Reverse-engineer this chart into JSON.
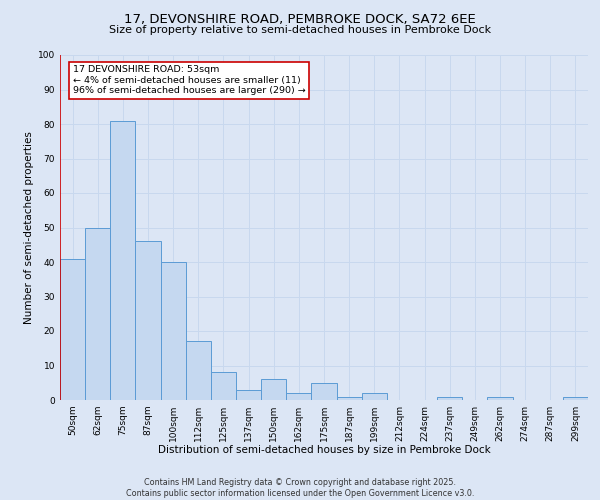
{
  "title_line1": "17, DEVONSHIRE ROAD, PEMBROKE DOCK, SA72 6EE",
  "title_line2": "Size of property relative to semi-detached houses in Pembroke Dock",
  "xlabel": "Distribution of semi-detached houses by size in Pembroke Dock",
  "ylabel": "Number of semi-detached properties",
  "categories": [
    "50sqm",
    "62sqm",
    "75sqm",
    "87sqm",
    "100sqm",
    "112sqm",
    "125sqm",
    "137sqm",
    "150sqm",
    "162sqm",
    "175sqm",
    "187sqm",
    "199sqm",
    "212sqm",
    "224sqm",
    "237sqm",
    "249sqm",
    "262sqm",
    "274sqm",
    "287sqm",
    "299sqm"
  ],
  "values": [
    41,
    50,
    81,
    46,
    40,
    17,
    8,
    3,
    6,
    2,
    5,
    1,
    2,
    0,
    0,
    1,
    0,
    1,
    0,
    0,
    1
  ],
  "bar_color": "#c5d8f0",
  "bar_edge_color": "#5b9bd5",
  "bar_edge_width": 0.7,
  "annotation_text": "17 DEVONSHIRE ROAD: 53sqm\n← 4% of semi-detached houses are smaller (11)\n96% of semi-detached houses are larger (290) →",
  "annotation_box_color": "#ffffff",
  "annotation_box_edge_color": "#cc0000",
  "subject_line_color": "#cc0000",
  "ylim": [
    0,
    100
  ],
  "yticks": [
    0,
    10,
    20,
    30,
    40,
    50,
    60,
    70,
    80,
    90,
    100
  ],
  "grid_color": "#c8d8ee",
  "background_color": "#dce6f5",
  "footer": "Contains HM Land Registry data © Crown copyright and database right 2025.\nContains public sector information licensed under the Open Government Licence v3.0.",
  "title_fontsize": 9.5,
  "subtitle_fontsize": 8.0,
  "axis_label_fontsize": 7.5,
  "tick_fontsize": 6.5,
  "annotation_fontsize": 6.8,
  "footer_fontsize": 5.8
}
